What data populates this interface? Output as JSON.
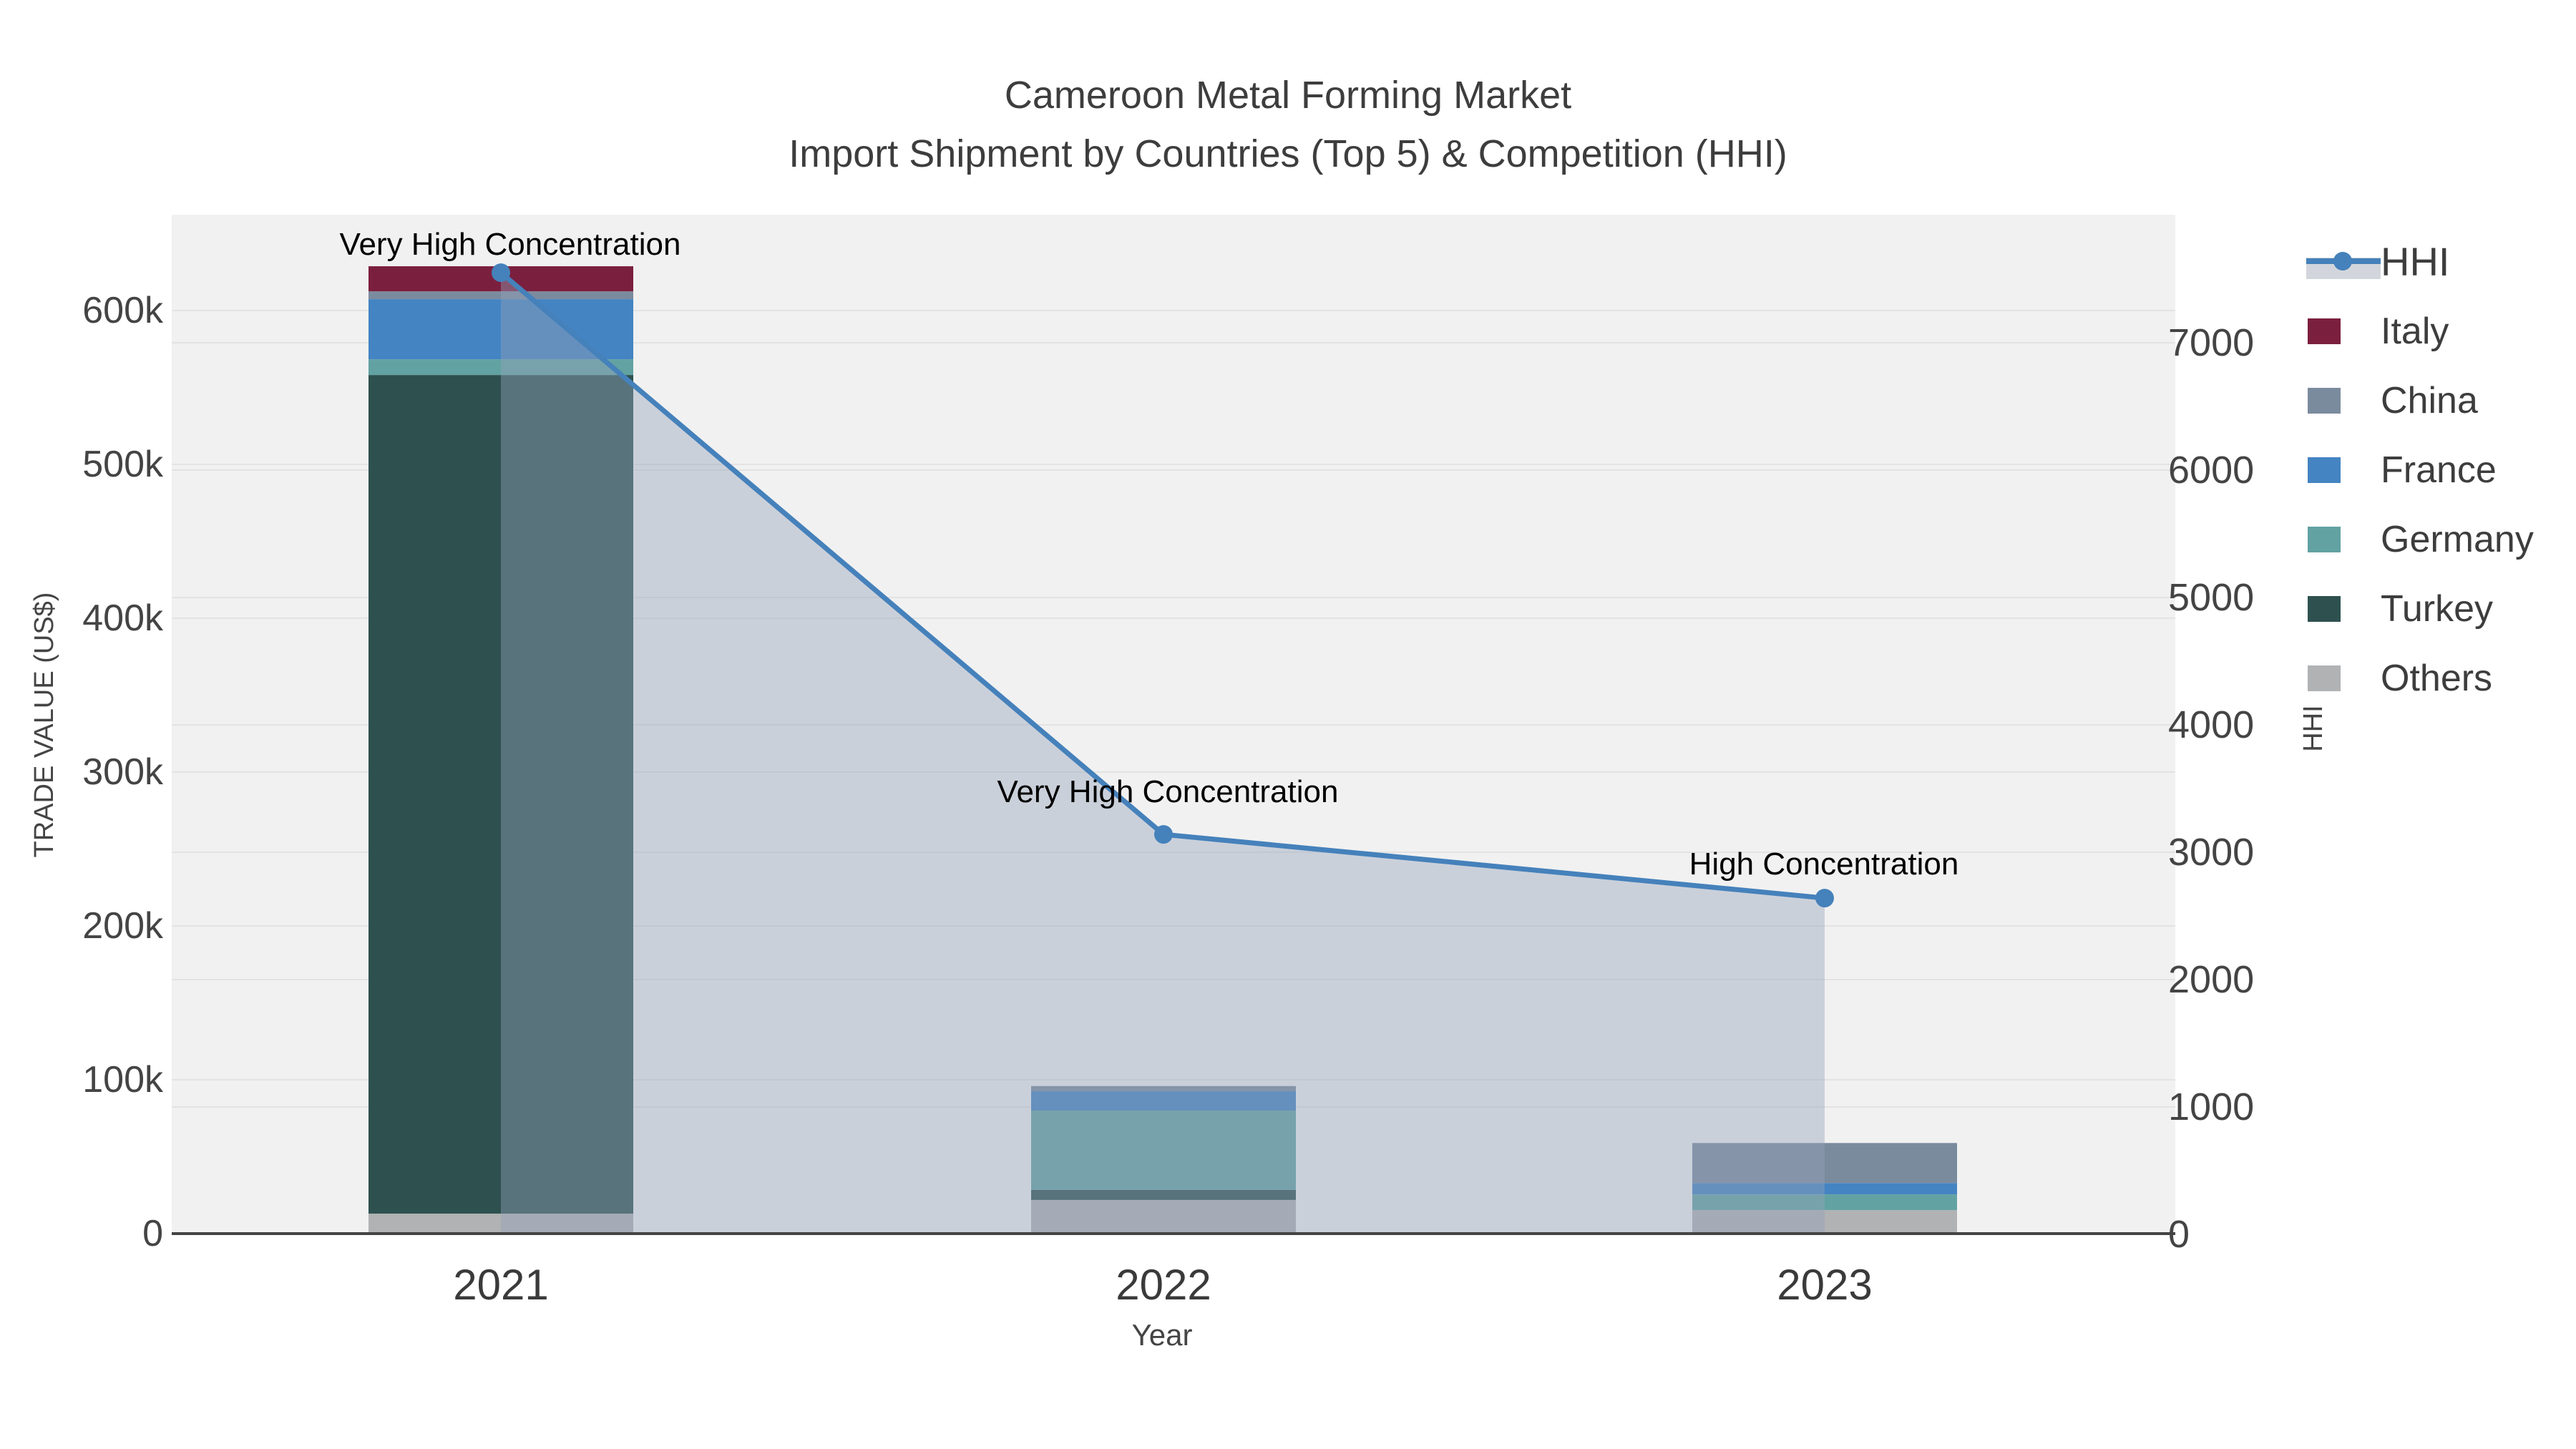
{
  "figure": {
    "title_line1": "Cameroon Metal Forming Market",
    "title_line2": "Import Shipment by Countries (Top 5) & Competition (HHI)"
  },
  "axes": {
    "left": {
      "title": "TRADE VALUE (US$)",
      "ticks": [
        "0",
        "100k",
        "200k",
        "300k",
        "400k",
        "500k",
        "600k"
      ]
    },
    "right": {
      "title": "HHI",
      "ticks": [
        "0",
        "1000",
        "2000",
        "3000",
        "4000",
        "5000",
        "6000",
        "7000"
      ]
    },
    "x": {
      "title": "Year",
      "ticks": [
        "2021",
        "2022",
        "2023"
      ]
    }
  },
  "legend": {
    "items": [
      {
        "label": "HHI",
        "color": "#4581bb",
        "swatch": "line-marker",
        "band_color": "#d2d6dc"
      },
      {
        "label": "Italy",
        "color": "#7b1f3e",
        "swatch": "square"
      },
      {
        "label": "China",
        "color": "#7b8b9e",
        "swatch": "square"
      },
      {
        "label": "France",
        "color": "#4484c2",
        "swatch": "square"
      },
      {
        "label": "Germany",
        "color": "#62a2a2",
        "swatch": "square"
      },
      {
        "label": "Turkey",
        "color": "#2e5150",
        "swatch": "square"
      },
      {
        "label": "Others",
        "color": "#b0b2b3",
        "swatch": "square"
      }
    ]
  },
  "chart_data": {
    "type": "bar",
    "subtype": "stacked-bars-with-line-area-overlay",
    "title": "Cameroon Metal Forming Market — Import Shipment by Countries (Top 5) & Competition (HHI)",
    "categories": [
      "2021",
      "2022",
      "2023"
    ],
    "xlabel": "Year",
    "y_left": {
      "label": "TRADE VALUE (US$)",
      "tick_values": [
        0,
        100000,
        200000,
        300000,
        400000,
        500000,
        600000
      ],
      "range": [
        0,
        662000
      ]
    },
    "y_right": {
      "label": "HHI",
      "tick_values": [
        0,
        1000,
        2000,
        3000,
        4000,
        5000,
        6000,
        7000
      ],
      "range": [
        0,
        8000
      ]
    },
    "grid": true,
    "legend_position": "top-right",
    "plot_bg": "#f1f1f1",
    "grid_color": "#e3e3e3",
    "axis_line_color": "#444444",
    "stack_order_bottom_to_top": [
      "Others",
      "Turkey",
      "Germany",
      "France",
      "China",
      "Italy"
    ],
    "series": [
      {
        "name": "Italy",
        "color": "#7b1f3e",
        "values": [
          16300,
          0,
          0
        ]
      },
      {
        "name": "China",
        "color": "#7b8b9e",
        "values": [
          5100,
          3300,
          26000
        ]
      },
      {
        "name": "France",
        "color": "#4484c2",
        "values": [
          39100,
          12600,
          7400
        ]
      },
      {
        "name": "Germany",
        "color": "#62a2a2",
        "values": [
          10200,
          51600,
          10200
        ]
      },
      {
        "name": "Turkey",
        "color": "#2e5150",
        "values": [
          545100,
          6500,
          0
        ]
      },
      {
        "name": "Others",
        "color": "#b0b2b3",
        "values": [
          13000,
          21900,
          15300
        ]
      }
    ],
    "stack_totals": [
      628800,
      95900,
      58900
    ],
    "line_series": {
      "name": "HHI",
      "axis": "right",
      "color": "#4581bb",
      "area_fill": "rgba(148,162,186,0.42)",
      "values": [
        7550,
        3140,
        2640
      ],
      "annotations": [
        "Very High Concentration",
        "Very High Concentration",
        "High Concentration"
      ]
    }
  }
}
